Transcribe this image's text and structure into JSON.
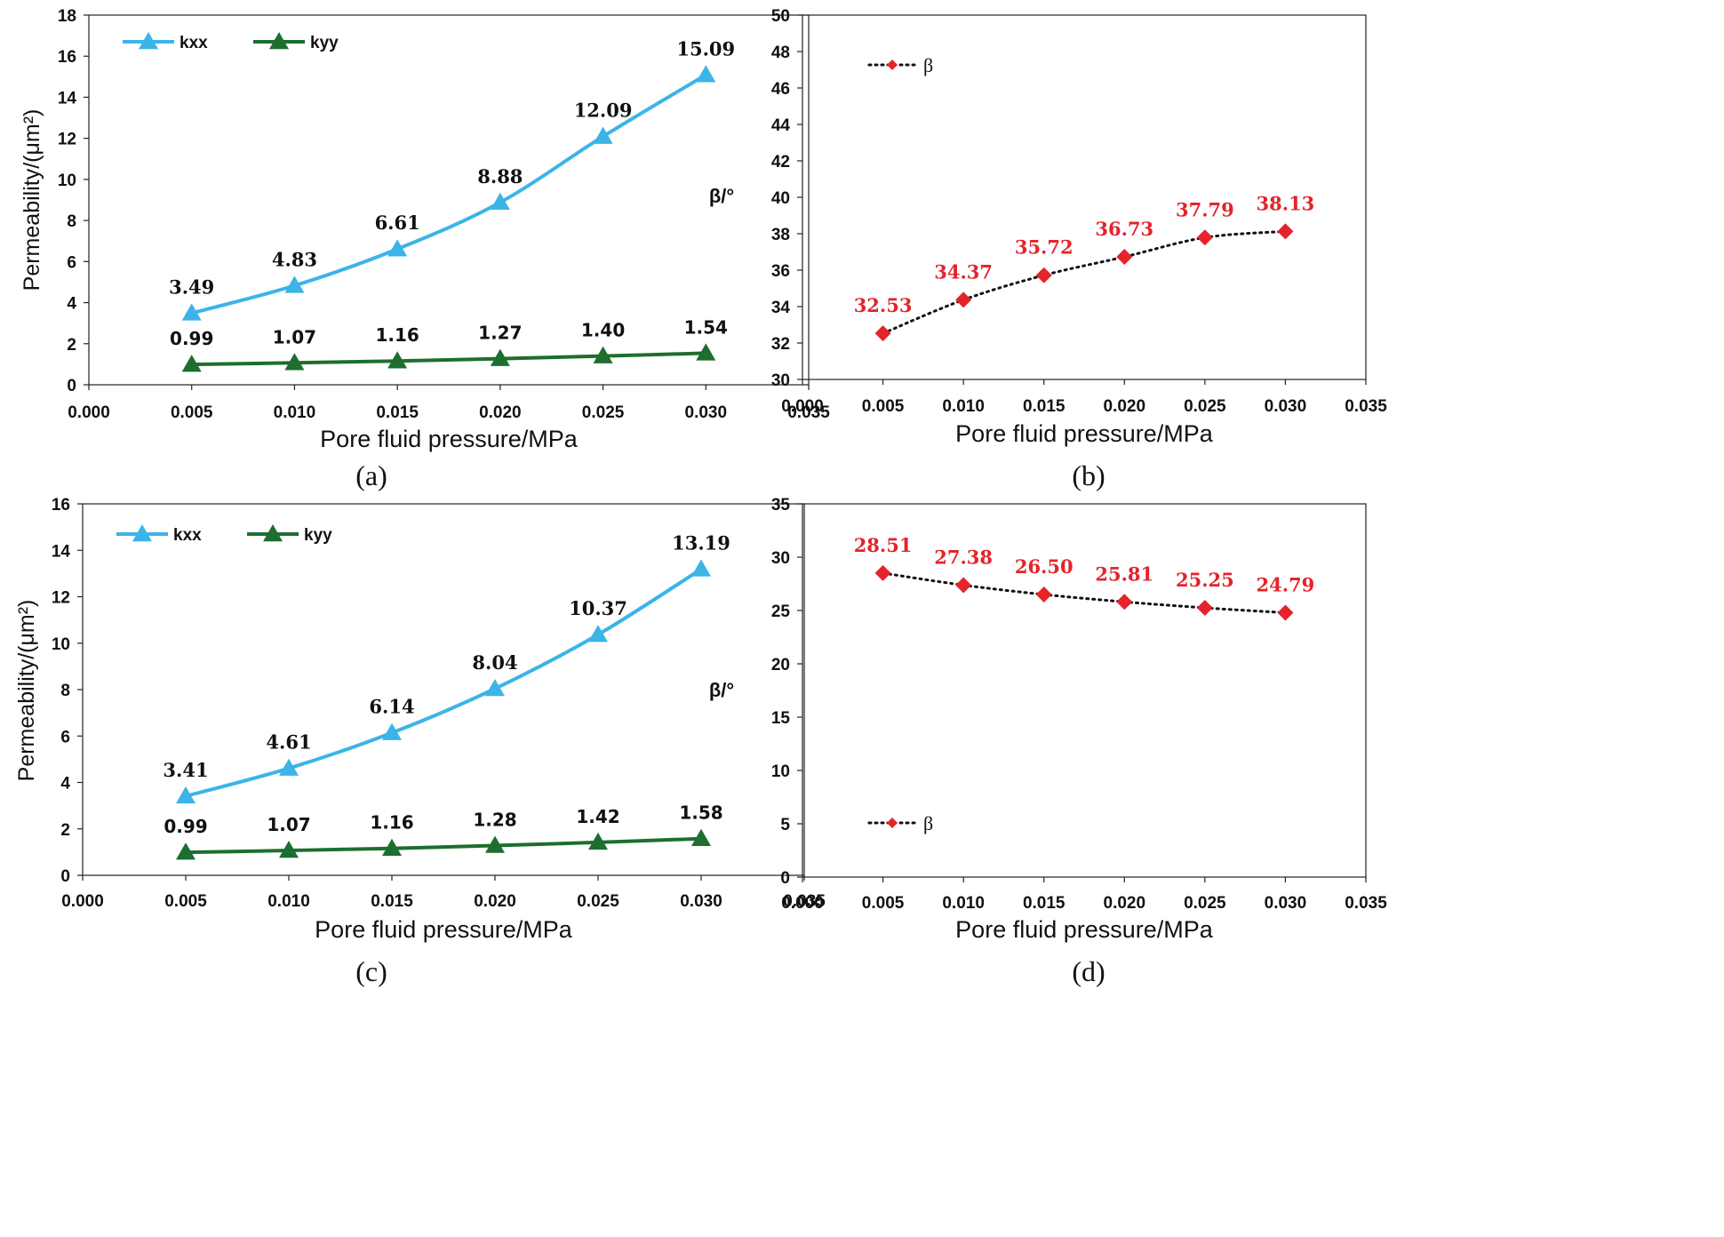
{
  "colors": {
    "kxx": "#3bb4e8",
    "kyy": "#1d6e2f",
    "beta": "#e3242b",
    "axis": "#222222"
  },
  "chart_data": [
    {
      "id": "a",
      "type": "line",
      "caption": "(a)",
      "xlabel": "Pore fluid pressure/MPa",
      "ylabel": "Permeability/(μm²)",
      "xlim": [
        0,
        0.035
      ],
      "xstep": 0.005,
      "xdecimals": 3,
      "ylim": [
        0,
        18
      ],
      "ystep": 2,
      "ydecimals": 0,
      "legend_position": "top-left",
      "series": [
        {
          "name": "kxx",
          "marker": "triangle",
          "color": "#3bb4e8",
          "line": "solid",
          "x": [
            0.005,
            0.01,
            0.015,
            0.02,
            0.025,
            0.03
          ],
          "values": [
            3.49,
            4.83,
            6.61,
            8.88,
            12.09,
            15.09
          ],
          "labels": [
            "3.49",
            "4.83",
            "6.61",
            "8.88",
            "12.09",
            "15.09"
          ]
        },
        {
          "name": "kyy",
          "marker": "triangle",
          "color": "#1d6e2f",
          "line": "solid",
          "x": [
            0.005,
            0.01,
            0.015,
            0.02,
            0.025,
            0.03
          ],
          "values": [
            0.99,
            1.07,
            1.16,
            1.27,
            1.4,
            1.54
          ],
          "labels": [
            "0.99",
            "1.07",
            "1.16",
            "1.27",
            "1.40",
            "1.54"
          ]
        }
      ]
    },
    {
      "id": "b",
      "type": "line",
      "caption": "(b)",
      "xlabel": "Pore fluid pressure/MPa",
      "ylabel": "β/°",
      "xlim": [
        0,
        0.035
      ],
      "xstep": 0.005,
      "xdecimals": 3,
      "ylim": [
        30,
        50
      ],
      "ystep": 2,
      "ydecimals": 0,
      "legend_position": "top-left",
      "series": [
        {
          "name": "β",
          "marker": "diamond",
          "color": "#e3242b",
          "line": "dotted",
          "x": [
            0.005,
            0.01,
            0.015,
            0.02,
            0.025,
            0.03
          ],
          "values": [
            32.53,
            34.37,
            35.72,
            36.73,
            37.79,
            38.13
          ],
          "labels": [
            "32.53",
            "34.37",
            "35.72",
            "36.73",
            "37.79",
            "38.13"
          ]
        }
      ]
    },
    {
      "id": "c",
      "type": "line",
      "caption": "(c)",
      "xlabel": "Pore fluid pressure/MPa",
      "ylabel": "Permeability/(μm²)",
      "xlim": [
        0,
        0.035
      ],
      "xstep": 0.005,
      "xdecimals": 3,
      "ylim": [
        0,
        16
      ],
      "ystep": 2,
      "ydecimals": 0,
      "legend_position": "top-left",
      "series": [
        {
          "name": "kxx",
          "marker": "triangle",
          "color": "#3bb4e8",
          "line": "solid",
          "x": [
            0.005,
            0.01,
            0.015,
            0.02,
            0.025,
            0.03
          ],
          "values": [
            3.41,
            4.61,
            6.14,
            8.04,
            10.37,
            13.19
          ],
          "labels": [
            "3.41",
            "4.61",
            "6.14",
            "8.04",
            "10.37",
            "13.19"
          ]
        },
        {
          "name": "kyy",
          "marker": "triangle",
          "color": "#1d6e2f",
          "line": "solid",
          "x": [
            0.005,
            0.01,
            0.015,
            0.02,
            0.025,
            0.03
          ],
          "values": [
            0.99,
            1.07,
            1.16,
            1.28,
            1.42,
            1.58
          ],
          "labels": [
            "0.99",
            "1.07",
            "1.16",
            "1.28",
            "1.42",
            "1.58"
          ]
        }
      ]
    },
    {
      "id": "d",
      "type": "line",
      "caption": "(d)",
      "xlabel": "Pore fluid pressure/MPa",
      "ylabel": "β/°",
      "xlim": [
        0,
        0.035
      ],
      "xstep": 0.005,
      "xdecimals": 3,
      "ylim": [
        0,
        35
      ],
      "ystep": 5,
      "ydecimals": 0,
      "legend_position": "bottom-left",
      "series": [
        {
          "name": "β",
          "marker": "diamond",
          "color": "#e3242b",
          "line": "dotted",
          "x": [
            0.005,
            0.01,
            0.015,
            0.02,
            0.025,
            0.03
          ],
          "values": [
            28.51,
            27.38,
            26.5,
            25.81,
            25.25,
            24.79
          ],
          "labels": [
            "28.51",
            "27.38",
            "26.50",
            "25.81",
            "25.25",
            "24.79"
          ]
        }
      ]
    }
  ]
}
